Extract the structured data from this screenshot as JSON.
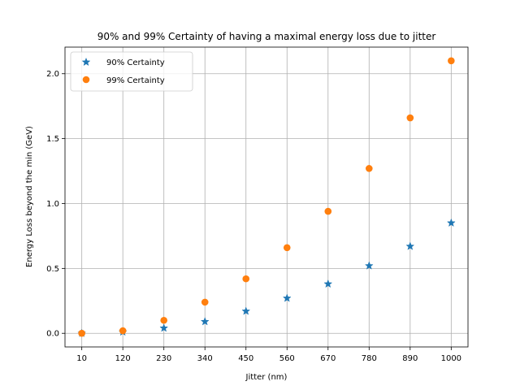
{
  "chart_data": {
    "type": "scatter",
    "title": "90% and 99% Certainty of having a maximal energy loss due to jitter",
    "xlabel": "Jitter (nm)",
    "ylabel": "Energy Loss beyond the min (GeV)",
    "x": [
      10,
      120,
      230,
      340,
      450,
      560,
      670,
      780,
      890,
      1000
    ],
    "x_ticks": [
      "10",
      "120",
      "230",
      "340",
      "450",
      "560",
      "670",
      "780",
      "890",
      "1000"
    ],
    "y_ticks": [
      "0.0",
      "0.5",
      "1.0",
      "1.5",
      "2.0"
    ],
    "y_tick_values": [
      0.0,
      0.5,
      1.0,
      1.5,
      2.0
    ],
    "xlim": [
      -35,
      1045
    ],
    "ylim": [
      -0.105,
      2.205
    ],
    "grid": true,
    "legend_position": "upper-left",
    "series": [
      {
        "name": "90% Certainty",
        "marker": "star",
        "color": "#1f77b4",
        "values": [
          0.0,
          0.01,
          0.04,
          0.09,
          0.17,
          0.27,
          0.38,
          0.52,
          0.67,
          0.85
        ]
      },
      {
        "name": "99% Certainty",
        "marker": "circle",
        "color": "#ff7f0e",
        "values": [
          0.0,
          0.02,
          0.1,
          0.24,
          0.42,
          0.66,
          0.94,
          1.27,
          1.66,
          2.1
        ]
      }
    ]
  }
}
